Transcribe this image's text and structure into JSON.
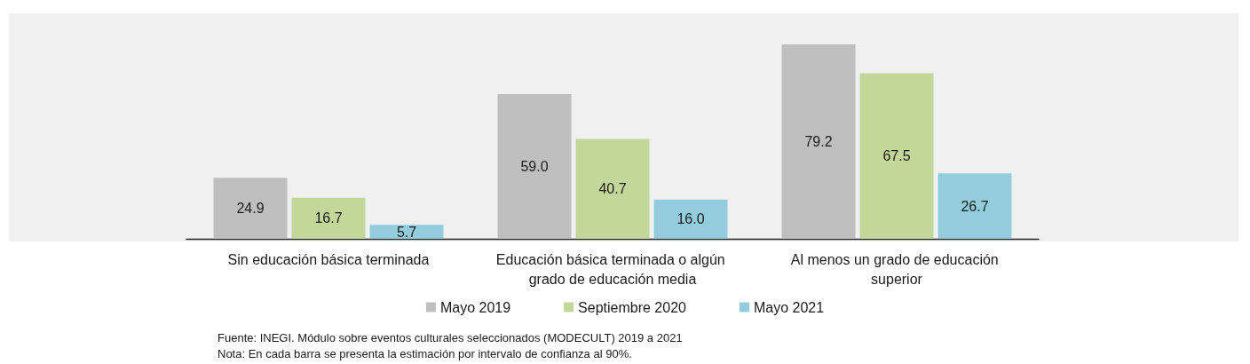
{
  "chart_data": {
    "type": "bar",
    "categories": [
      "Sin educación básica terminada",
      "Educación básica terminada o algún grado de educación media",
      "Al menos un grado de educación superior"
    ],
    "series": [
      {
        "name": "Mayo 2019",
        "color": "#bfbfbf",
        "values": [
          24.9,
          59.0,
          79.2
        ],
        "value_labels": [
          "24.9",
          "59.0",
          "79.2"
        ]
      },
      {
        "name": "Septiembre 2020",
        "color": "#c4d79b",
        "values": [
          16.7,
          40.7,
          67.5
        ],
        "value_labels": [
          "16.7",
          "40.7",
          "67.5"
        ]
      },
      {
        "name": "Mayo 2021",
        "color": "#93cddd",
        "values": [
          5.7,
          16.0,
          26.7
        ],
        "value_labels": [
          "5.7",
          "16.0",
          "26.7"
        ]
      }
    ],
    "tick_labels": "x",
    "legend": "bottom",
    "annotations": [
      "Fuente: INEGI. Módulo sobre eventos culturales seleccionados (MODECULT) 2019 a 2021",
      "Nota: En cada barra se presenta la estimación por intervalo de confianza al 90%."
    ]
  }
}
